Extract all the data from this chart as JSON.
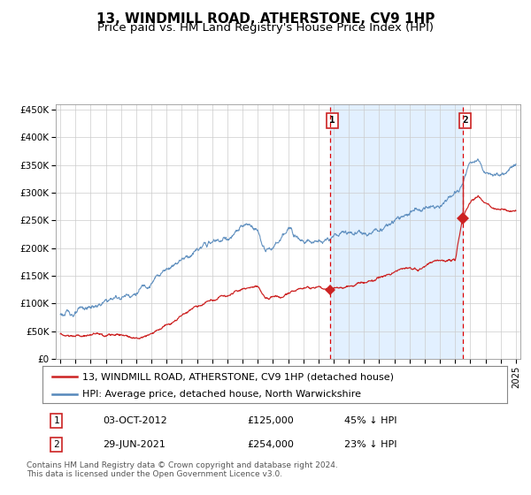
{
  "title": "13, WINDMILL ROAD, ATHERSTONE, CV9 1HP",
  "subtitle": "Price paid vs. HM Land Registry's House Price Index (HPI)",
  "ylabel_ticks": [
    "£0",
    "£50K",
    "£100K",
    "£150K",
    "£200K",
    "£250K",
    "£300K",
    "£350K",
    "£400K",
    "£450K"
  ],
  "ytick_vals": [
    0,
    50000,
    100000,
    150000,
    200000,
    250000,
    300000,
    350000,
    400000,
    450000
  ],
  "ylim": [
    0,
    460000
  ],
  "xlim_start": 1994.7,
  "xlim_end": 2025.3,
  "hpi_color": "#5588bb",
  "price_color": "#cc2222",
  "bg_fill_color": "#ddeeff",
  "sale1_date": 2012.77,
  "sale1_price": 125000,
  "sale1_label": "1",
  "sale2_date": 2021.5,
  "sale2_price": 254000,
  "sale2_label": "2",
  "legend_line1": "13, WINDMILL ROAD, ATHERSTONE, CV9 1HP (detached house)",
  "legend_line2": "HPI: Average price, detached house, North Warwickshire",
  "table_row1": [
    "1",
    "03-OCT-2012",
    "£125,000",
    "45% ↓ HPI"
  ],
  "table_row2": [
    "2",
    "29-JUN-2021",
    "£254,000",
    "23% ↓ HPI"
  ],
  "footer": "Contains HM Land Registry data © Crown copyright and database right 2024.\nThis data is licensed under the Open Government Licence v3.0.",
  "title_fontsize": 11,
  "subtitle_fontsize": 9.5,
  "tick_fontsize": 7.5,
  "legend_fontsize": 8,
  "table_fontsize": 8,
  "footer_fontsize": 6.5
}
